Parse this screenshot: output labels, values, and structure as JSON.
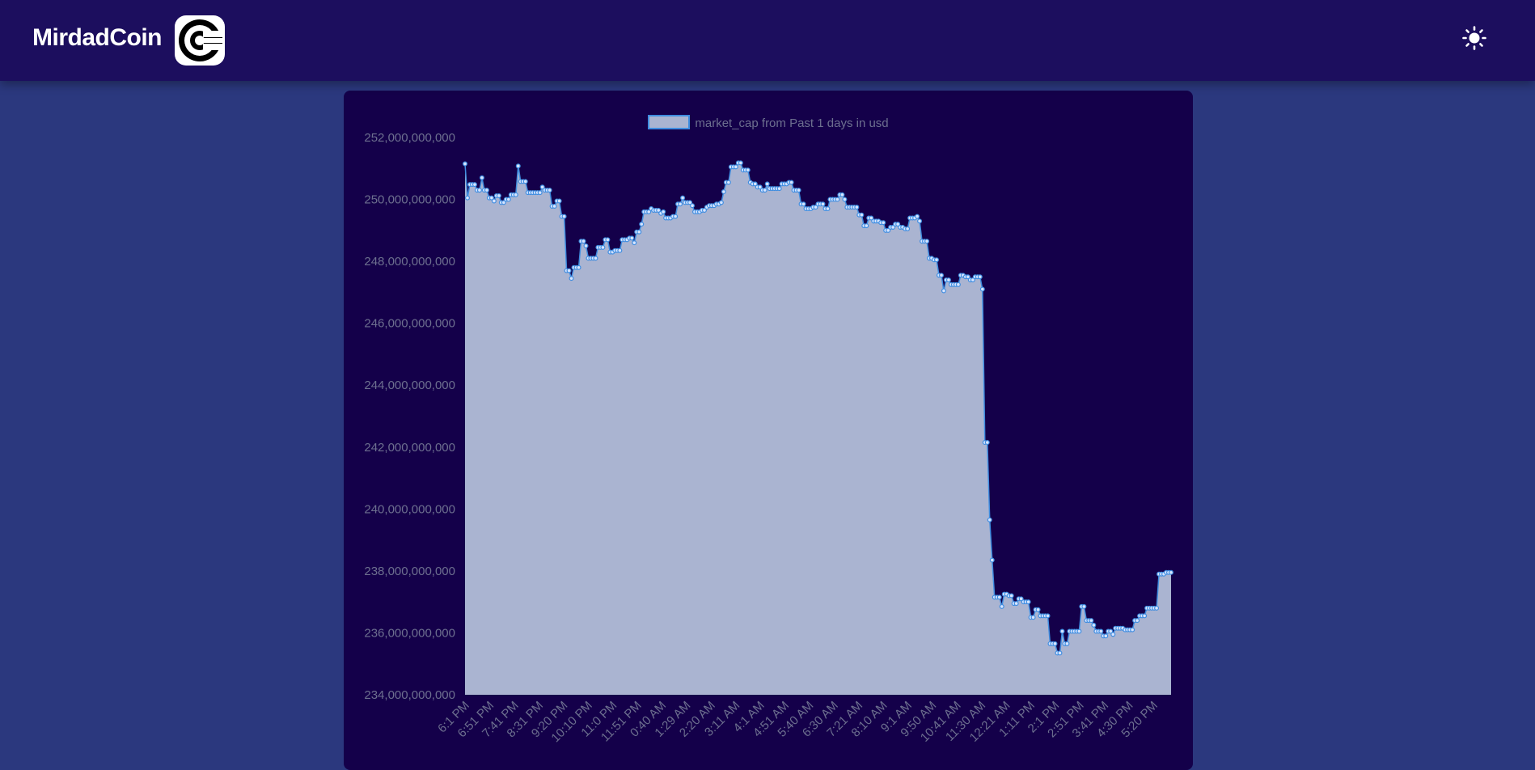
{
  "header": {
    "brand_name": "MirdadCoin",
    "logo_icon": "coin-c-logo-icon",
    "theme_toggle_icon": "sun-icon"
  },
  "colors": {
    "topbar_bg": "#1c0e5e",
    "page_bg": "#2b387e",
    "card_bg": "#14004a",
    "area_fill": "#aab4d1",
    "line": "#3f8de0",
    "axis_text": "#6d6f8f"
  },
  "chart_data": {
    "type": "area",
    "series": [
      {
        "name": "market_cap from Past 1 days in usd",
        "values": [
          251150000000,
          250050000000,
          250480000000,
          250480000000,
          250480000000,
          250300000000,
          250300000000,
          250700000000,
          250300000000,
          250300000000,
          250050000000,
          250050000000,
          249950000000,
          250120000000,
          250120000000,
          249900000000,
          249900000000,
          250000000000,
          250000000000,
          250150000000,
          250150000000,
          250150000000,
          251080000000,
          250580000000,
          250580000000,
          250580000000,
          250220000000,
          250220000000,
          250220000000,
          250220000000,
          250220000000,
          250220000000,
          250400000000,
          250300000000,
          250300000000,
          250300000000,
          249780000000,
          249780000000,
          249950000000,
          249950000000,
          249450000000,
          249450000000,
          247700000000,
          247700000000,
          247450000000,
          247800000000,
          247800000000,
          247800000000,
          248650000000,
          248650000000,
          248500000000,
          248100000000,
          248100000000,
          248100000000,
          248100000000,
          248450000000,
          248450000000,
          248450000000,
          248700000000,
          248700000000,
          248300000000,
          248300000000,
          248350000000,
          248350000000,
          248350000000,
          248700000000,
          248700000000,
          248700000000,
          248750000000,
          248750000000,
          248600000000,
          248950000000,
          248950000000,
          249200000000,
          249600000000,
          249600000000,
          249600000000,
          249700000000,
          249650000000,
          249650000000,
          249650000000,
          249550000000,
          249600000000,
          249400000000,
          249400000000,
          249400000000,
          249450000000,
          249450000000,
          249850000000,
          249850000000,
          250050000000,
          249900000000,
          249900000000,
          249900000000,
          249800000000,
          249600000000,
          249600000000,
          249600000000,
          249650000000,
          249650000000,
          249750000000,
          249800000000,
          249800000000,
          249800000000,
          249850000000,
          249850000000,
          249900000000,
          250250000000,
          250550000000,
          250550000000,
          251050000000,
          251050000000,
          251050000000,
          251180000000,
          251180000000,
          250950000000,
          250950000000,
          250950000000,
          250550000000,
          250500000000,
          250500000000,
          250400000000,
          250400000000,
          250300000000,
          250300000000,
          250500000000,
          250350000000,
          250350000000,
          250350000000,
          250350000000,
          250350000000,
          250500000000,
          250500000000,
          250500000000,
          250550000000,
          250550000000,
          250300000000,
          250300000000,
          250300000000,
          249850000000,
          249850000000,
          249700000000,
          249700000000,
          249700000000,
          249750000000,
          249750000000,
          249850000000,
          249850000000,
          249850000000,
          249700000000,
          249700000000,
          250000000000,
          250000000000,
          250000000000,
          250000000000,
          250150000000,
          250150000000,
          250000000000,
          249750000000,
          249750000000,
          249750000000,
          249750000000,
          249750000000,
          249500000000,
          249500000000,
          249150000000,
          249150000000,
          249400000000,
          249400000000,
          249300000000,
          249300000000,
          249300000000,
          249250000000,
          249250000000,
          249000000000,
          249000000000,
          249100000000,
          249100000000,
          249200000000,
          249200000000,
          249100000000,
          249100000000,
          249050000000,
          249050000000,
          249400000000,
          249400000000,
          249400000000,
          249450000000,
          249300000000,
          248650000000,
          248650000000,
          248650000000,
          248100000000,
          248100000000,
          248050000000,
          248050000000,
          247550000000,
          247550000000,
          247050000000,
          247400000000,
          247400000000,
          247250000000,
          247250000000,
          247250000000,
          247250000000,
          247550000000,
          247550000000,
          247500000000,
          247500000000,
          247400000000,
          247400000000,
          247500000000,
          247500000000,
          247500000000,
          247100000000,
          242150000000,
          242150000000,
          239650000000,
          238350000000,
          237150000000,
          237150000000,
          237150000000,
          236850000000,
          237250000000,
          237250000000,
          237200000000,
          237200000000,
          236950000000,
          236950000000,
          237100000000,
          237100000000,
          237000000000,
          237000000000,
          237000000000,
          236500000000,
          236500000000,
          236750000000,
          236750000000,
          236550000000,
          236550000000,
          236550000000,
          236550000000,
          235650000000,
          235650000000,
          235650000000,
          235350000000,
          235350000000,
          236050000000,
          235650000000,
          235650000000,
          236050000000,
          236050000000,
          236050000000,
          236050000000,
          236050000000,
          236850000000,
          236850000000,
          236400000000,
          236400000000,
          236400000000,
          236250000000,
          236050000000,
          236050000000,
          236050000000,
          235900000000,
          235900000000,
          236050000000,
          236050000000,
          235950000000,
          236150000000,
          236150000000,
          236150000000,
          236150000000,
          236100000000,
          236100000000,
          236100000000,
          236100000000,
          236400000000,
          236400000000,
          236550000000,
          236550000000,
          236550000000,
          236800000000,
          236800000000,
          236800000000,
          236800000000,
          236800000000,
          237900000000,
          237900000000,
          237900000000,
          237950000000,
          237950000000,
          237950000000
        ]
      }
    ],
    "x_tick_labels": [
      "6:1 PM",
      "6:51 PM",
      "7:41 PM",
      "8:31 PM",
      "9:20 PM",
      "10:10 PM",
      "11:0 PM",
      "11:51 PM",
      "0:40 AM",
      "1:29 AM",
      "2:20 AM",
      "3:11 AM",
      "4:1 AM",
      "4:51 AM",
      "5:40 AM",
      "6:30 AM",
      "7:21 AM",
      "8:10 AM",
      "9:1 AM",
      "9:50 AM",
      "10:41 AM",
      "11:30 AM",
      "12:21 AM",
      "1:11 PM",
      "2:1 PM",
      "2:51 PM",
      "3:41 PM",
      "4:30 PM",
      "5:20 PM"
    ],
    "y_tick_labels": [
      "252,000,000,000",
      "250,000,000,000",
      "248,000,000,000",
      "246,000,000,000",
      "244,000,000,000",
      "242,000,000,000",
      "240,000,000,000",
      "238,000,000,000",
      "236,000,000,000",
      "234,000,000,000"
    ],
    "ylim": [
      234000000000,
      252000000000
    ],
    "grid": false,
    "legend_position": "top",
    "fill": true
  }
}
